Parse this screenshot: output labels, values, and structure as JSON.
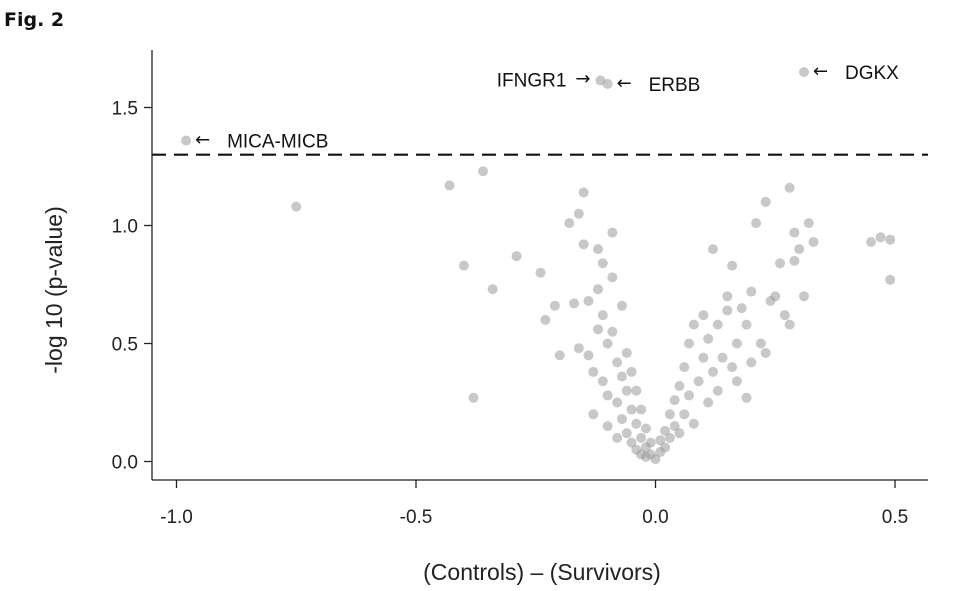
{
  "figure_label": "Fig. 2",
  "chart_data": {
    "type": "scatter",
    "title": "",
    "xlabel": "(Controls) – (Survivors)",
    "ylabel": "-log 10 (p-value)",
    "xlim": [
      -1.07,
      0.57
    ],
    "ylim": [
      -0.07,
      1.75
    ],
    "x_ticks": [
      -1.0,
      -0.5,
      0.0,
      0.5
    ],
    "x_tick_labels": [
      "-1.0",
      "-0.5",
      "0.0",
      "0.5"
    ],
    "y_ticks": [
      0.0,
      0.5,
      1.0,
      1.5
    ],
    "y_tick_labels": [
      "0.0",
      "0.5",
      "1.0",
      "1.5"
    ],
    "threshold": 1.3,
    "grid": false,
    "point_color": "#9a9a9a",
    "annotations": [
      {
        "label": "MICA-MICB",
        "arrow": "←",
        "x": -0.98,
        "y": 1.36
      },
      {
        "label": "IFNGR1",
        "arrow": "→",
        "x": -0.115,
        "y": 1.615
      },
      {
        "label": "ERBB",
        "arrow": "←",
        "x": -0.1,
        "y": 1.6
      },
      {
        "label": "DGKX",
        "arrow": "←",
        "x": 0.31,
        "y": 1.65
      }
    ],
    "points": [
      [
        -0.98,
        1.36
      ],
      [
        -0.115,
        1.615
      ],
      [
        -0.1,
        1.6
      ],
      [
        0.31,
        1.65
      ],
      [
        -0.75,
        1.08
      ],
      [
        -0.43,
        1.17
      ],
      [
        -0.36,
        1.23
      ],
      [
        -0.4,
        0.83
      ],
      [
        -0.34,
        0.73
      ],
      [
        -0.38,
        0.27
      ],
      [
        -0.29,
        0.87
      ],
      [
        -0.24,
        0.8
      ],
      [
        -0.23,
        0.6
      ],
      [
        -0.21,
        0.66
      ],
      [
        -0.2,
        0.45
      ],
      [
        -0.18,
        1.01
      ],
      [
        -0.17,
        0.67
      ],
      [
        -0.16,
        1.05
      ],
      [
        -0.15,
        1.14
      ],
      [
        -0.16,
        0.48
      ],
      [
        -0.15,
        0.92
      ],
      [
        -0.14,
        0.68
      ],
      [
        -0.14,
        0.45
      ],
      [
        -0.13,
        0.38
      ],
      [
        -0.13,
        0.2
      ],
      [
        -0.12,
        0.9
      ],
      [
        -0.12,
        0.73
      ],
      [
        -0.12,
        0.56
      ],
      [
        -0.11,
        0.84
      ],
      [
        -0.11,
        0.62
      ],
      [
        -0.11,
        0.34
      ],
      [
        -0.1,
        0.5
      ],
      [
        -0.1,
        0.28
      ],
      [
        -0.1,
        0.15
      ],
      [
        -0.09,
        0.97
      ],
      [
        -0.09,
        0.78
      ],
      [
        -0.09,
        0.55
      ],
      [
        -0.08,
        0.42
      ],
      [
        -0.08,
        0.25
      ],
      [
        -0.08,
        0.1
      ],
      [
        -0.07,
        0.66
      ],
      [
        -0.07,
        0.36
      ],
      [
        -0.07,
        0.18
      ],
      [
        -0.06,
        0.46
      ],
      [
        -0.06,
        0.3
      ],
      [
        -0.06,
        0.12
      ],
      [
        -0.05,
        0.38
      ],
      [
        -0.05,
        0.22
      ],
      [
        -0.05,
        0.08
      ],
      [
        -0.04,
        0.3
      ],
      [
        -0.04,
        0.16
      ],
      [
        -0.04,
        0.05
      ],
      [
        -0.03,
        0.22
      ],
      [
        -0.03,
        0.1
      ],
      [
        -0.03,
        0.03
      ],
      [
        -0.02,
        0.14
      ],
      [
        -0.02,
        0.06
      ],
      [
        -0.02,
        0.02
      ],
      [
        -0.01,
        0.08
      ],
      [
        -0.01,
        0.03
      ],
      [
        0.0,
        0.01
      ],
      [
        0.01,
        0.04
      ],
      [
        0.01,
        0.09
      ],
      [
        0.02,
        0.06
      ],
      [
        0.02,
        0.13
      ],
      [
        0.03,
        0.1
      ],
      [
        0.03,
        0.2
      ],
      [
        0.04,
        0.15
      ],
      [
        0.04,
        0.26
      ],
      [
        0.05,
        0.12
      ],
      [
        0.05,
        0.32
      ],
      [
        0.06,
        0.2
      ],
      [
        0.06,
        0.4
      ],
      [
        0.07,
        0.28
      ],
      [
        0.07,
        0.5
      ],
      [
        0.08,
        0.16
      ],
      [
        0.08,
        0.58
      ],
      [
        0.09,
        0.34
      ],
      [
        0.1,
        0.44
      ],
      [
        0.1,
        0.62
      ],
      [
        0.11,
        0.25
      ],
      [
        0.11,
        0.52
      ],
      [
        0.12,
        0.38
      ],
      [
        0.12,
        0.9
      ],
      [
        0.13,
        0.58
      ],
      [
        0.13,
        0.3
      ],
      [
        0.14,
        0.44
      ],
      [
        0.15,
        0.7
      ],
      [
        0.15,
        0.64
      ],
      [
        0.16,
        0.83
      ],
      [
        0.16,
        0.4
      ],
      [
        0.17,
        0.34
      ],
      [
        0.17,
        0.5
      ],
      [
        0.18,
        0.65
      ],
      [
        0.19,
        0.58
      ],
      [
        0.19,
        0.27
      ],
      [
        0.2,
        0.72
      ],
      [
        0.2,
        0.42
      ],
      [
        0.21,
        1.01
      ],
      [
        0.22,
        0.5
      ],
      [
        0.23,
        0.46
      ],
      [
        0.23,
        1.1
      ],
      [
        0.24,
        0.68
      ],
      [
        0.25,
        0.7
      ],
      [
        0.26,
        0.84
      ],
      [
        0.27,
        0.62
      ],
      [
        0.28,
        1.16
      ],
      [
        0.28,
        0.58
      ],
      [
        0.29,
        0.97
      ],
      [
        0.29,
        0.85
      ],
      [
        0.3,
        0.9
      ],
      [
        0.31,
        0.7
      ],
      [
        0.32,
        1.01
      ],
      [
        0.33,
        0.93
      ],
      [
        0.45,
        0.93
      ],
      [
        0.47,
        0.95
      ],
      [
        0.49,
        0.94
      ],
      [
        0.49,
        0.77
      ]
    ]
  }
}
